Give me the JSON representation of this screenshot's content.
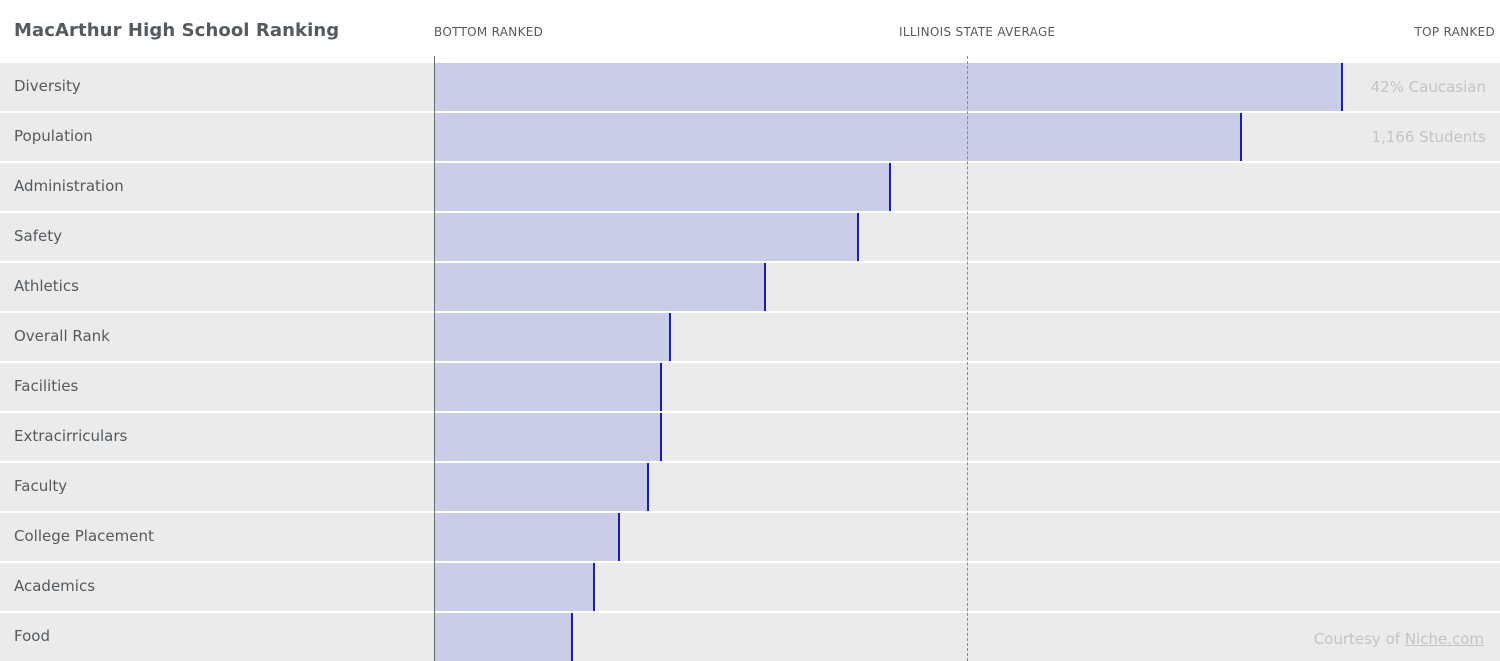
{
  "header": {
    "title": "MacArthur High School Ranking",
    "bottom_label": "BOTTOM RANKED",
    "average_label": "ILLINOIS STATE AVERAGE",
    "top_label": "TOP RANKED"
  },
  "chart_data": {
    "type": "bar",
    "orientation": "horizontal",
    "title": "MacArthur High School Ranking",
    "xlim": [
      0,
      100
    ],
    "reference_line": {
      "label": "ILLINOIS STATE AVERAGE",
      "value": 50
    },
    "categories": [
      "Diversity",
      "Population",
      "Administration",
      "Safety",
      "Athletics",
      "Overall Rank",
      "Facilities",
      "Extracirriculars",
      "Faculty",
      "College Placement",
      "Academics",
      "Food"
    ],
    "values": [
      85.4,
      75.9,
      42.8,
      39.8,
      31.1,
      22.1,
      21.3,
      21.3,
      20.1,
      17.3,
      15.0,
      12.9
    ],
    "annotations": [
      {
        "category": "Diversity",
        "text": "42% Caucasian"
      },
      {
        "category": "Population",
        "text": "1,166 Students"
      }
    ]
  },
  "footer": {
    "credit_prefix": "Courtesy of ",
    "credit_link": "Niche.com"
  },
  "colors": {
    "bar": "#c9cde8",
    "marker": "#1a1acc",
    "row": "#ebebeb"
  }
}
